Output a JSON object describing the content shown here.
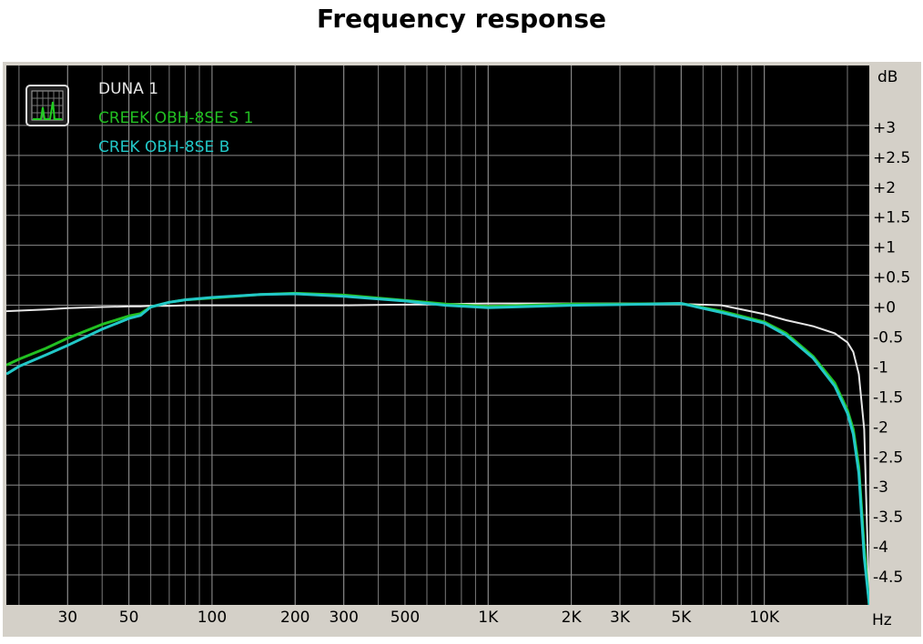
{
  "chart_data": {
    "type": "line",
    "title": "Frequency response",
    "y_unit": "dB",
    "x_unit": "Hz",
    "log_x": true,
    "grid": true,
    "x": [
      18,
      20,
      25,
      30,
      40,
      50,
      55,
      60,
      70,
      80,
      100,
      150,
      200,
      300,
      500,
      700,
      1000,
      2000,
      3000,
      5000,
      7000,
      10000,
      12000,
      15000,
      18000,
      20000,
      21000,
      22000,
      23000,
      24000
    ],
    "series": [
      {
        "name": "DUNA 1",
        "color": "#e6e6e6",
        "values": [
          -0.1,
          -0.09,
          -0.07,
          -0.05,
          -0.03,
          -0.02,
          -0.02,
          -0.01,
          -0.01,
          0.0,
          0.0,
          0.0,
          0.0,
          0.0,
          0.01,
          0.02,
          0.03,
          0.03,
          0.03,
          0.02,
          0.0,
          -0.15,
          -0.25,
          -0.35,
          -0.47,
          -0.62,
          -0.78,
          -1.15,
          -2.07,
          -5
        ]
      },
      {
        "name": "CREEK OBH-8SE S 1",
        "color": "#22c022",
        "values": [
          -1.0,
          -0.9,
          -0.72,
          -0.55,
          -0.32,
          -0.18,
          -0.14,
          -0.03,
          0.05,
          0.09,
          0.12,
          0.18,
          0.2,
          0.17,
          0.08,
          0.02,
          -0.02,
          0.02,
          0.02,
          0.03,
          -0.1,
          -0.28,
          -0.47,
          -0.85,
          -1.3,
          -1.75,
          -2.07,
          -2.7,
          -4.05,
          -5
        ]
      },
      {
        "name": "CREK OBH-8SE B",
        "color": "#22c8c8",
        "values": [
          -1.15,
          -1.02,
          -0.83,
          -0.67,
          -0.4,
          -0.22,
          -0.17,
          -0.03,
          0.05,
          0.09,
          0.13,
          0.18,
          0.19,
          0.15,
          0.07,
          0.0,
          -0.04,
          0.0,
          0.01,
          0.03,
          -0.12,
          -0.3,
          -0.5,
          -0.88,
          -1.35,
          -1.8,
          -2.15,
          -2.8,
          -4.2,
          -5
        ]
      }
    ],
    "xlim": [
      18,
      24000
    ],
    "xticks": [
      30,
      50,
      100,
      200,
      300,
      500,
      {
        "value": 1000,
        "label": "1K"
      },
      {
        "value": 2000,
        "label": "2K"
      },
      {
        "value": 3000,
        "label": "3K"
      },
      {
        "value": 5000,
        "label": "5K"
      },
      {
        "value": 10000,
        "label": "10K"
      }
    ],
    "ylim": [
      -5,
      4
    ],
    "yticks": [
      {
        "value": 3,
        "label": "+3"
      },
      {
        "value": 2.5,
        "label": "+2.5"
      },
      {
        "value": 2,
        "label": "+2"
      },
      {
        "value": 1.5,
        "label": "+1.5"
      },
      {
        "value": 1,
        "label": "+1"
      },
      {
        "value": 0.5,
        "label": "+0.5"
      },
      {
        "value": 0,
        "label": "+0"
      },
      {
        "value": -0.5,
        "label": "-0.5"
      },
      {
        "value": -1,
        "label": "-1"
      },
      {
        "value": -1.5,
        "label": "-1.5"
      },
      {
        "value": -2,
        "label": "-2"
      },
      {
        "value": -2.5,
        "label": "-2.5"
      },
      {
        "value": -3,
        "label": "-3"
      },
      {
        "value": -3.5,
        "label": "-3.5"
      },
      {
        "value": -4,
        "label": "-4"
      },
      {
        "value": -4.5,
        "label": "-4.5"
      }
    ]
  }
}
